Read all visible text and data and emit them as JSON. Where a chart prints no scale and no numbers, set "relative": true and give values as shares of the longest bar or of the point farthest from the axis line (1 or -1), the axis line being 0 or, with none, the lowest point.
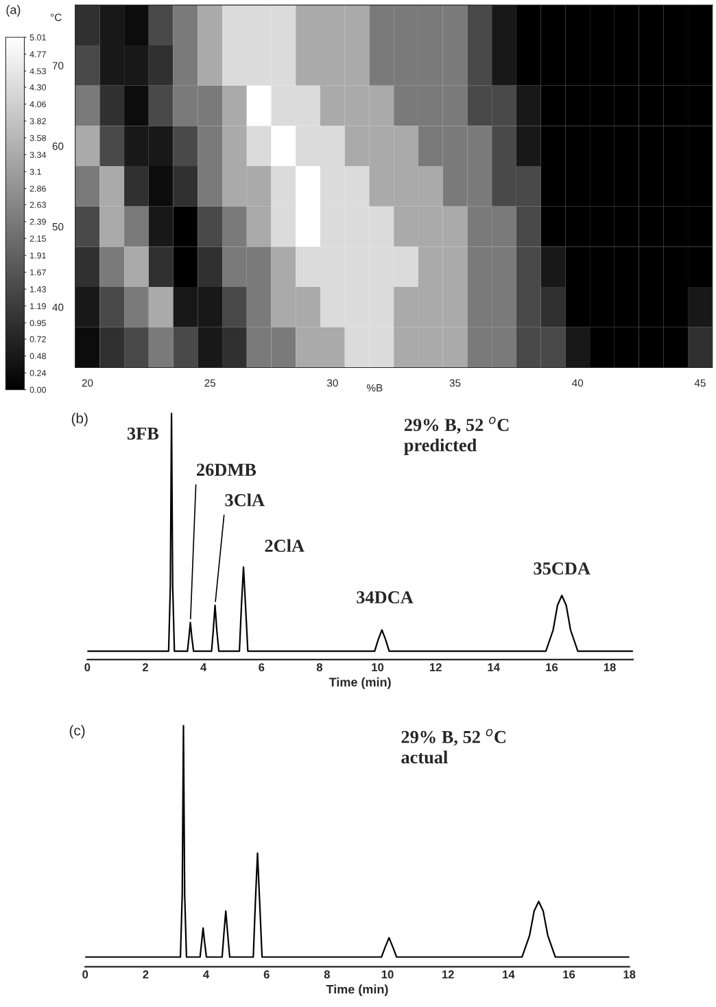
{
  "chart_data": [
    {
      "type": "heatmap",
      "title": "(a)",
      "xlabel": "%B",
      "ylabel": "°C",
      "categories": [
        "20",
        null,
        null,
        null,
        null,
        "25",
        null,
        null,
        null,
        null,
        "30",
        null,
        null,
        null,
        null,
        "35",
        null,
        null,
        null,
        null,
        "40",
        null,
        null,
        null,
        null,
        "45"
      ],
      "y_categories": [
        null,
        "70",
        null,
        "60",
        null,
        "50",
        null,
        "40",
        null
      ],
      "cells": [
        [
          0.95,
          0.48,
          0.24,
          1.43,
          2.39,
          3.34,
          4.3,
          4.3,
          4.3,
          3.34,
          3.34,
          3.34,
          2.39,
          2.39,
          2.39,
          2.39,
          1.43,
          0.48,
          0,
          0,
          0,
          0,
          0,
          0,
          0,
          0
        ],
        [
          1.43,
          0.48,
          0.48,
          0.95,
          2.39,
          3.34,
          4.3,
          4.3,
          4.3,
          3.34,
          3.34,
          3.34,
          2.39,
          2.39,
          2.39,
          2.39,
          1.43,
          0.48,
          0,
          0,
          0,
          0,
          0,
          0,
          0,
          0
        ],
        [
          2.39,
          0.95,
          0.24,
          1.43,
          2.39,
          2.39,
          3.34,
          5.01,
          4.3,
          4.3,
          3.34,
          3.34,
          3.34,
          2.39,
          2.39,
          2.39,
          1.43,
          1.43,
          0.48,
          0,
          0,
          0,
          0,
          0,
          0,
          0
        ],
        [
          3.34,
          1.43,
          0.48,
          0.48,
          1.43,
          2.39,
          3.34,
          4.3,
          5.01,
          4.3,
          4.3,
          3.34,
          3.34,
          3.34,
          2.39,
          2.39,
          2.39,
          1.43,
          0.48,
          0,
          0,
          0,
          0,
          0,
          0,
          0
        ],
        [
          2.39,
          3.34,
          0.95,
          0.24,
          0.95,
          2.39,
          3.34,
          3.34,
          4.3,
          5.01,
          4.3,
          4.3,
          3.34,
          3.34,
          3.34,
          2.39,
          2.39,
          1.43,
          1.43,
          0,
          0,
          0,
          0,
          0,
          0,
          0
        ],
        [
          1.43,
          3.34,
          2.39,
          0.48,
          0,
          1.43,
          2.39,
          3.34,
          4.3,
          5.01,
          4.3,
          4.3,
          4.3,
          3.34,
          3.34,
          3.34,
          2.39,
          2.39,
          1.43,
          0,
          0,
          0,
          0,
          0,
          0,
          0
        ],
        [
          0.95,
          2.39,
          3.34,
          0.95,
          0,
          0.95,
          2.39,
          2.39,
          3.34,
          4.3,
          4.3,
          4.3,
          4.3,
          4.3,
          3.34,
          3.34,
          2.39,
          2.39,
          1.43,
          0.48,
          0,
          0,
          0,
          0,
          0,
          0
        ],
        [
          0.48,
          1.43,
          2.39,
          3.34,
          0.48,
          0.48,
          1.43,
          2.39,
          3.34,
          3.34,
          4.3,
          4.3,
          4.3,
          3.34,
          3.34,
          3.34,
          2.39,
          2.39,
          1.43,
          0.95,
          0,
          0,
          0,
          0,
          0,
          0.48
        ],
        [
          0.24,
          0.95,
          1.43,
          2.39,
          1.43,
          0.48,
          0.95,
          2.39,
          2.39,
          3.34,
          3.34,
          4.3,
          4.3,
          3.34,
          3.34,
          3.34,
          2.39,
          2.39,
          1.43,
          1.43,
          0.48,
          0,
          0,
          0,
          0,
          0.95
        ]
      ],
      "clim": [
        0,
        5.01
      ],
      "cticks": [
        {
          "value": 0,
          "label": "0.00"
        },
        0.24,
        0.48,
        0.72,
        0.95,
        1.19,
        1.43,
        1.67,
        1.91,
        2.15,
        2.39,
        2.63,
        2.86,
        3.1,
        3.34,
        3.58,
        3.82,
        4.06,
        {
          "value": 4.3,
          "label": "4.30"
        },
        4.53,
        4.77,
        5.01
      ]
    },
    {
      "type": "line",
      "title": "(b)",
      "xlabel": "Time (min)",
      "relative": true,
      "legend": false,
      "grid": false,
      "xlim": [
        0,
        18.8
      ],
      "xticks": [
        0,
        2,
        4,
        6,
        8,
        10,
        12,
        14,
        16,
        18
      ],
      "annotations": [
        "29% B, 52 $^{o}$C\npredicted",
        {
          "text": "3FB",
          "x": 2.9,
          "y": 1.0
        },
        {
          "text": "26DMB",
          "x": 3.55,
          "y": 0.15
        },
        {
          "text": "3ClA",
          "x": 4.4,
          "y": 0.22
        },
        {
          "text": "2ClA",
          "x": 5.38,
          "y": 0.375
        },
        {
          "text": "34DCA",
          "x": 10.15,
          "y": 0.12
        },
        {
          "text": "35CDA",
          "x": 16.35,
          "y": 0.26
        }
      ],
      "series": [
        {
          "color": "#000000",
          "x": [
            0,
            2.8,
            2.86,
            2.9,
            2.94,
            3.0,
            3.45,
            3.5,
            3.55,
            3.6,
            3.66,
            4.28,
            4.34,
            4.4,
            4.46,
            4.53,
            5.24,
            5.31,
            5.38,
            5.45,
            5.53,
            9.9,
            10.02,
            10.15,
            10.28,
            10.4,
            15.8,
            16.05,
            16.2,
            16.35,
            16.5,
            16.65,
            16.9,
            18.8
          ],
          "values": [
            0.034,
            0.034,
            0.3,
            1.0,
            0.3,
            0.034,
            0.034,
            0.09,
            0.15,
            0.09,
            0.034,
            0.034,
            0.12,
            0.22,
            0.12,
            0.034,
            0.034,
            0.22,
            0.375,
            0.22,
            0.034,
            0.034,
            0.08,
            0.12,
            0.08,
            0.034,
            0.034,
            0.12,
            0.22,
            0.26,
            0.22,
            0.12,
            0.034,
            0.034
          ]
        }
      ]
    },
    {
      "type": "line",
      "title": "(c)",
      "xlabel": "Time (min)",
      "relative": true,
      "legend": false,
      "grid": false,
      "xlim": [
        0,
        18
      ],
      "xticks": [
        0,
        2,
        4,
        6,
        8,
        10,
        12,
        14,
        16,
        18
      ],
      "annotations": [
        "29% B, 52 $^{o}$C\nactual"
      ],
      "series": [
        {
          "color": "#000000",
          "x": [
            0,
            3.15,
            3.21,
            3.25,
            3.29,
            3.35,
            3.8,
            3.85,
            3.9,
            3.95,
            4.01,
            4.53,
            4.59,
            4.65,
            4.71,
            4.78,
            5.56,
            5.63,
            5.7,
            5.77,
            5.85,
            9.8,
            9.92,
            10.05,
            10.18,
            10.3,
            14.45,
            14.7,
            14.85,
            15.0,
            15.15,
            15.3,
            15.55,
            18.0
          ],
          "values": [
            0.04,
            0.04,
            0.3,
            1.0,
            0.3,
            0.04,
            0.04,
            0.1,
            0.16,
            0.1,
            0.04,
            0.04,
            0.14,
            0.23,
            0.14,
            0.04,
            0.04,
            0.27,
            0.47,
            0.27,
            0.04,
            0.04,
            0.08,
            0.12,
            0.08,
            0.04,
            0.04,
            0.13,
            0.23,
            0.27,
            0.23,
            0.13,
            0.04,
            0.04
          ]
        }
      ]
    }
  ]
}
